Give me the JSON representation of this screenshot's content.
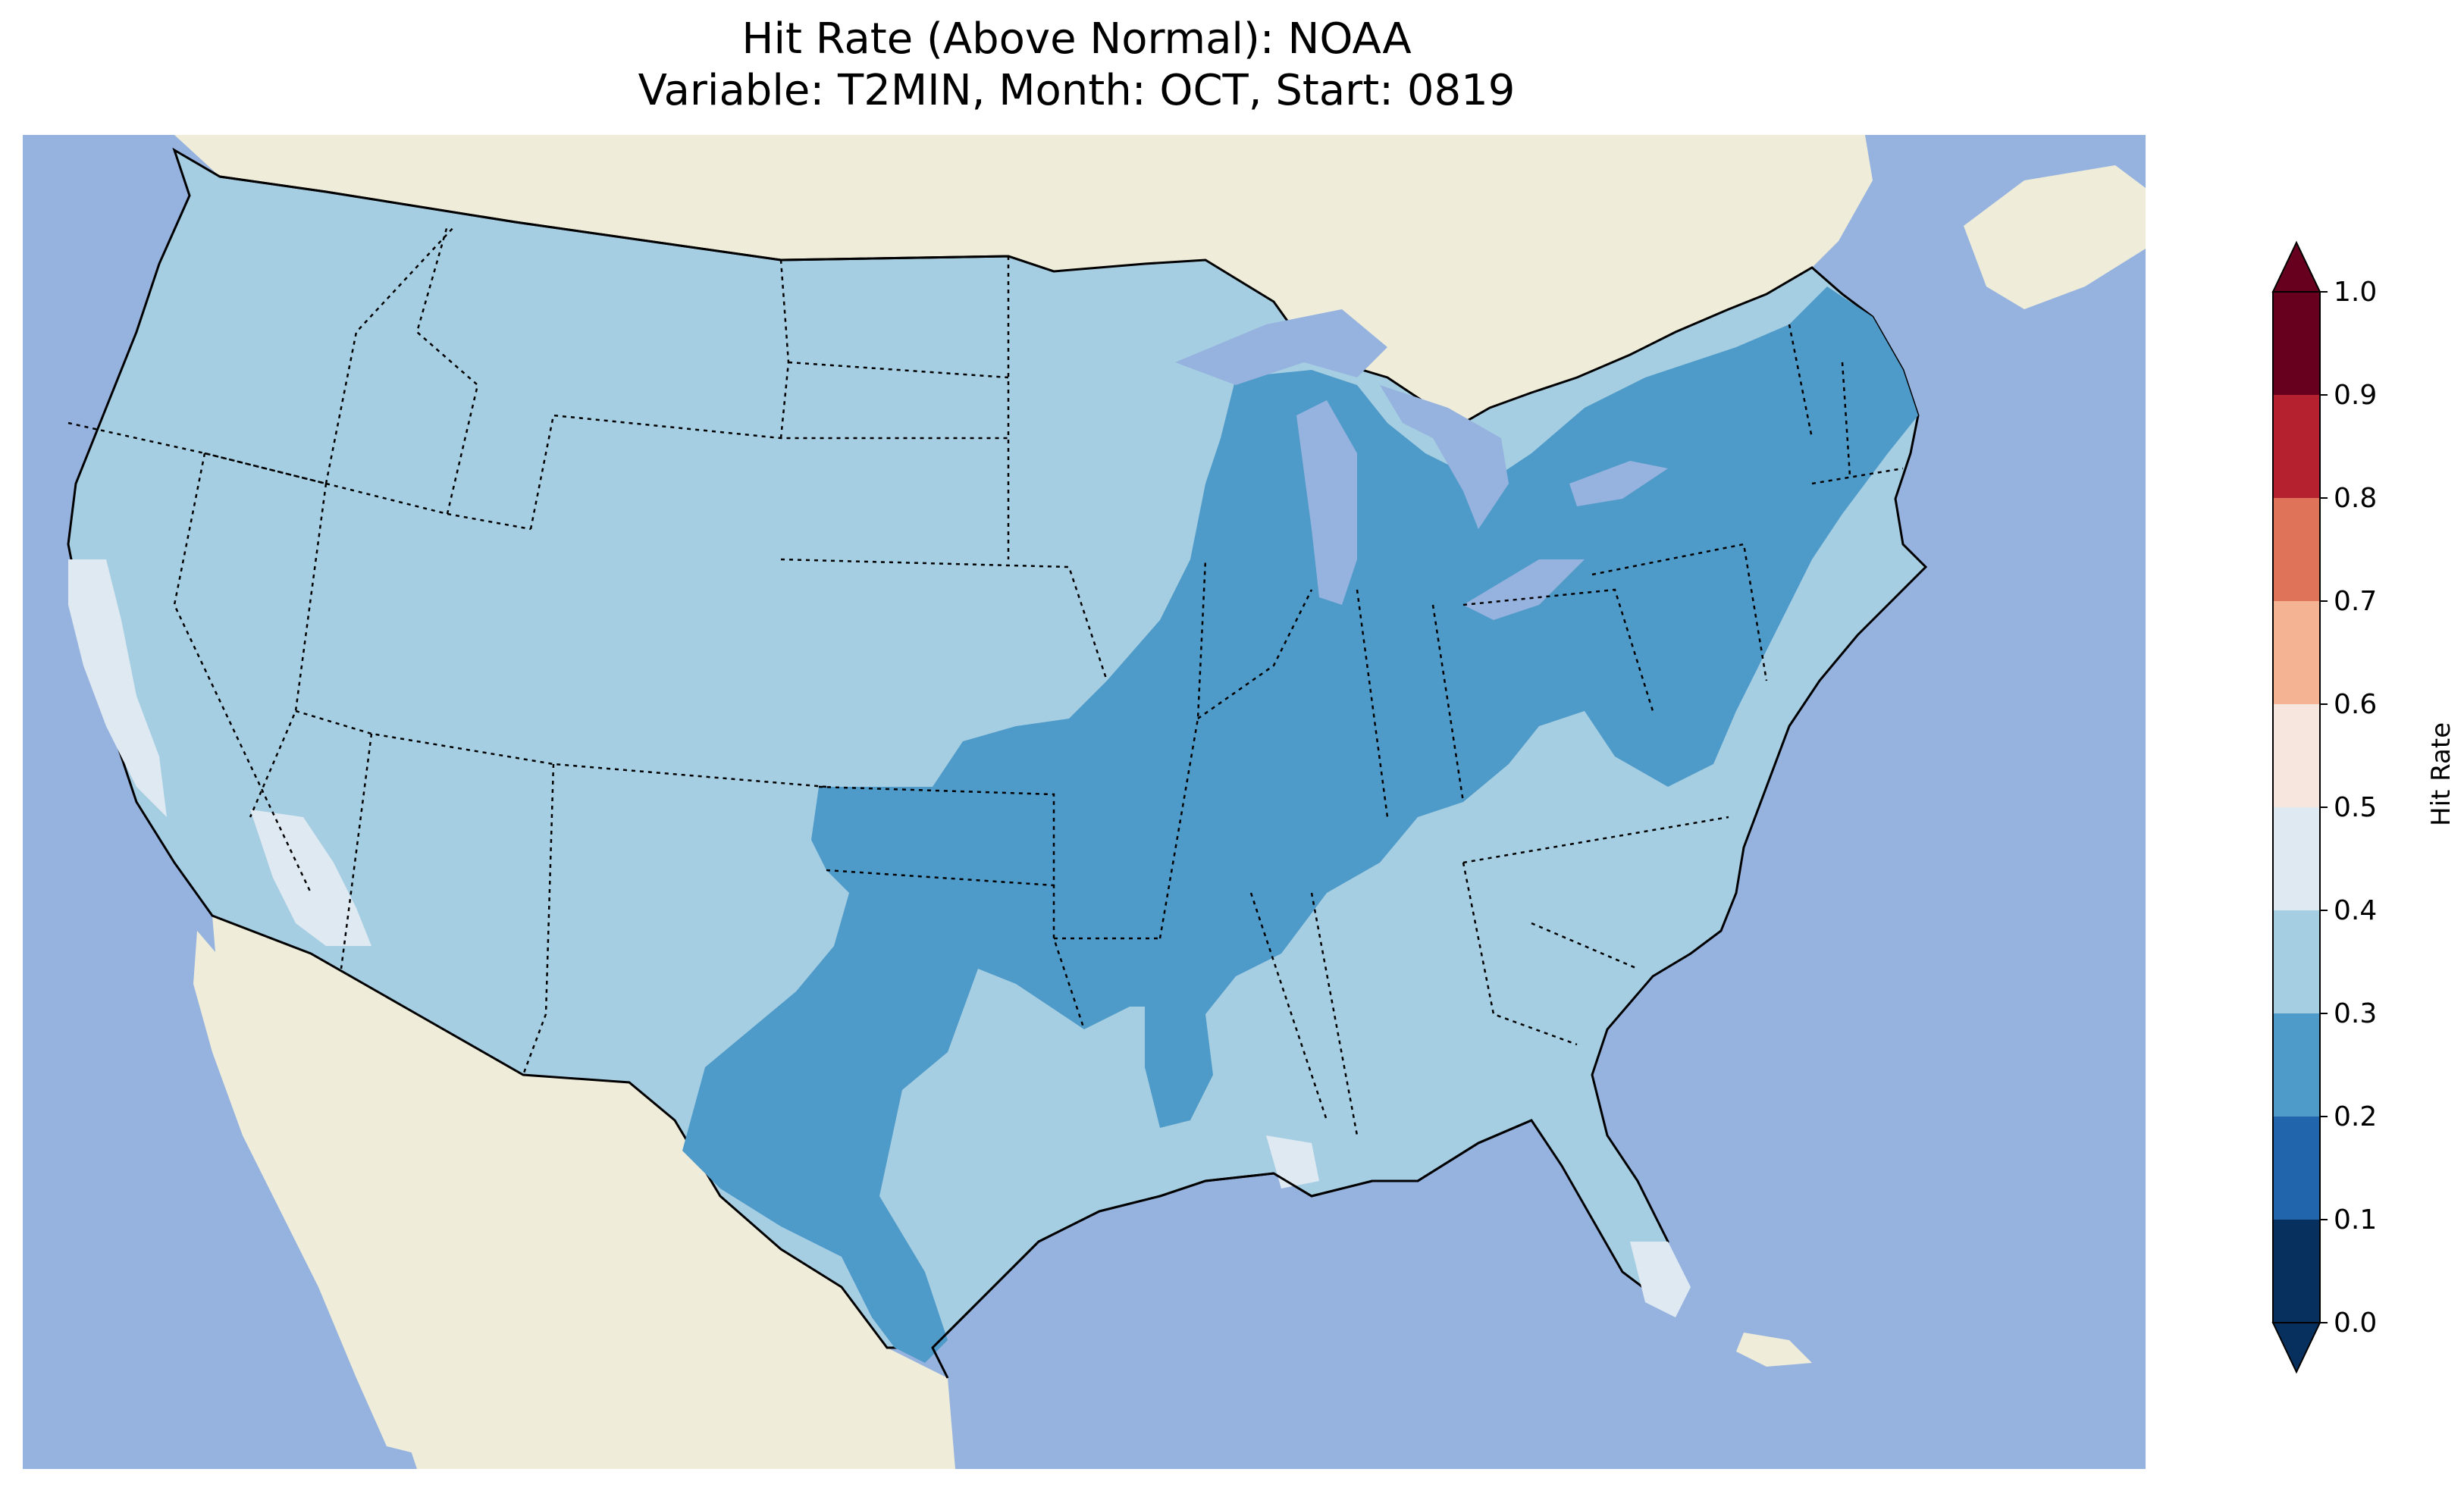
{
  "title": {
    "line1": "Hit Rate (Above Normal): NOAA",
    "line2": "Variable: T2MIN, Month: OCT, Start: 0819"
  },
  "map": {
    "region": "Contiguous United States",
    "colors": {
      "ocean": "#96b3df",
      "land": "#efedd9",
      "lakes": "#96b3df"
    },
    "regions": [
      {
        "area": "Western US and Northern Plains",
        "hit_rate_bin": "0.3-0.4",
        "color": "#a6cee3"
      },
      {
        "area": "Coastal California and Nevada border",
        "hit_rate_bin": "0.4-0.5",
        "color": "#dfe9f2"
      },
      {
        "area": "Central US, Midwest, Ohio Valley, Northeast, Texas",
        "hit_rate_bin": "0.2-0.3",
        "color": "#4e9ac8"
      },
      {
        "area": "Southeast and Gulf Coast",
        "hit_rate_bin": "0.3-0.4",
        "color": "#a6cee3"
      },
      {
        "area": "South Florida and Louisiana coast",
        "hit_rate_bin": "0.4-0.5",
        "color": "#dfe9f2"
      }
    ]
  },
  "colorbar": {
    "label": "Hit Rate",
    "ticks": [
      "0.0",
      "0.1",
      "0.2",
      "0.3",
      "0.4",
      "0.5",
      "0.6",
      "0.7",
      "0.8",
      "0.9",
      "1.0"
    ],
    "colors": [
      "#08305f",
      "#2166ac",
      "#4e9ac8",
      "#a6cee3",
      "#dfe9f2",
      "#f7e6dd",
      "#f4b494",
      "#df735a",
      "#b6212f",
      "#67001f"
    ],
    "extend": "both"
  }
}
